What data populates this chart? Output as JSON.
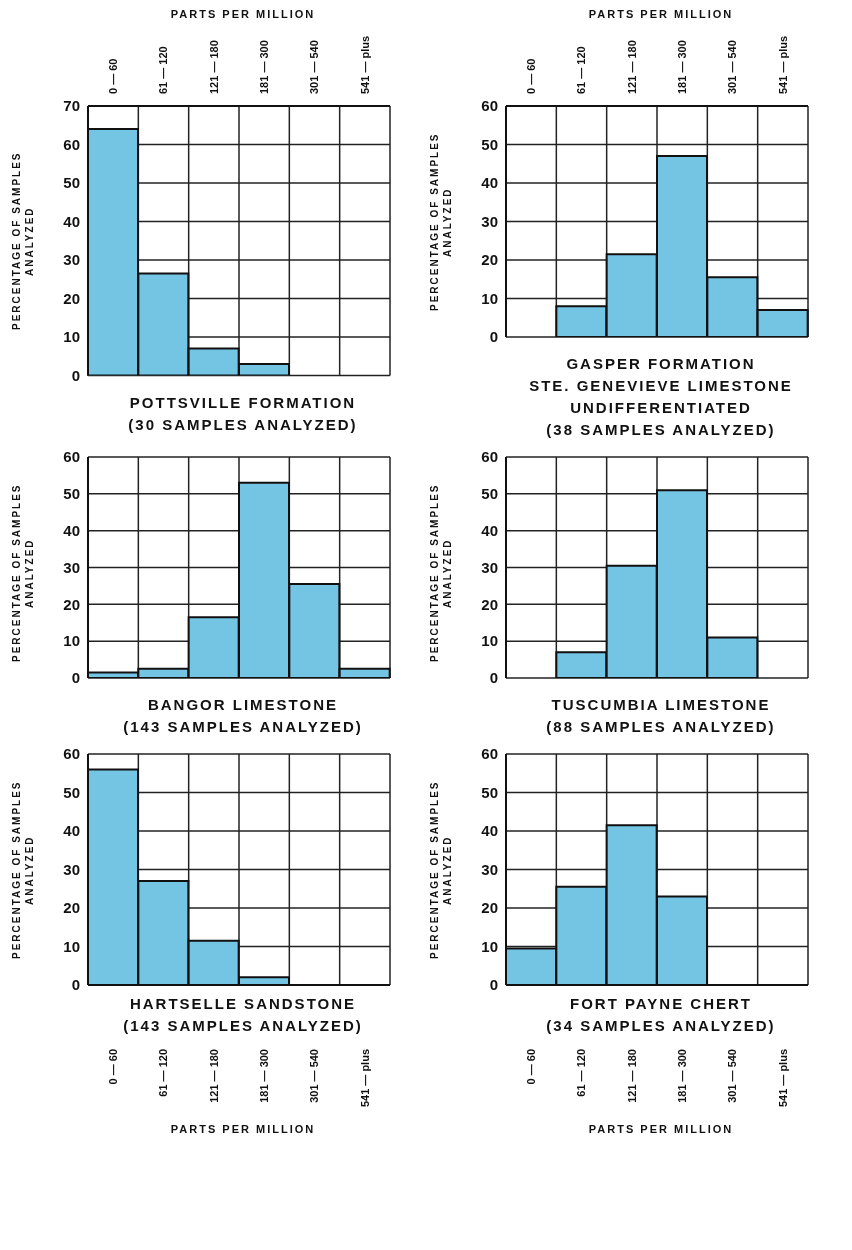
{
  "chart_data": [
    {
      "type": "bar",
      "title": "POTTSVILLE FORMATION",
      "annotations": [
        "(30 SAMPLES ANALYZED)"
      ],
      "x2label": "PARTS PER MILLION",
      "ylabel": "PERCENTAGE OF SAMPLES ANALYZED",
      "categories": [
        "0 — 60",
        "61 — 120",
        "121 — 180",
        "181 — 300",
        "301 — 540",
        "541 — plus"
      ],
      "values": [
        64,
        26.5,
        7,
        3,
        0,
        0
      ],
      "color": "#74c4e4",
      "ylim": [
        0,
        70
      ],
      "yticks": [
        0,
        10,
        20,
        30,
        40,
        50,
        60,
        70
      ],
      "grid": true
    },
    {
      "type": "bar",
      "title": "GASPER FORMATION",
      "subtitle": "STE. GENEVIEVE LIMESTONE UNDIFFERENTIATED",
      "annotations": [
        "(38 SAMPLES ANALYZED)"
      ],
      "x2label": "PARTS PER MILLION",
      "ylabel": "PERCENTAGE OF SAMPLES ANALYZED",
      "categories": [
        "0 — 60",
        "61 — 120",
        "121 — 180",
        "181 — 300",
        "301 — 540",
        "541 — plus"
      ],
      "values": [
        0,
        8,
        21.5,
        47,
        15.5,
        7
      ],
      "color": "#74c4e4",
      "ylim": [
        0,
        60
      ],
      "yticks": [
        0,
        10,
        20,
        30,
        40,
        50,
        60
      ],
      "grid": true
    },
    {
      "type": "bar",
      "title": "BANGOR LIMESTONE",
      "annotations": [
        "(143 SAMPLES ANALYZED)"
      ],
      "ylabel": "PERCENTAGE OF SAMPLES ANALYZED",
      "categories": [
        null,
        null,
        null,
        null,
        null,
        null
      ],
      "values": [
        1.5,
        2.5,
        16.5,
        53,
        25.5,
        2.5
      ],
      "color": "#74c4e4",
      "ylim": [
        0,
        60
      ],
      "yticks": [
        0,
        10,
        20,
        30,
        40,
        50,
        60
      ],
      "grid": true,
      "tick_labels": "y"
    },
    {
      "type": "bar",
      "title": "TUSCUMBIA LIMESTONE",
      "annotations": [
        "(88 SAMPLES ANALYZED)"
      ],
      "ylabel": "PERCENTAGE OF SAMPLES ANALYZED",
      "categories": [
        null,
        null,
        null,
        null,
        null,
        null
      ],
      "values": [
        0,
        7,
        30.5,
        51,
        11,
        0
      ],
      "color": "#74c4e4",
      "ylim": [
        0,
        60
      ],
      "yticks": [
        0,
        10,
        20,
        30,
        40,
        50,
        60
      ],
      "grid": true,
      "tick_labels": "y"
    },
    {
      "type": "bar",
      "title": "HARTSELLE SANDSTONE",
      "annotations": [
        "(143 SAMPLES ANALYZED)"
      ],
      "xlabel": "PARTS PER MILLION",
      "ylabel": "PERCENTAGE OF SAMPLES ANALYZED",
      "categories": [
        "0 — 60",
        "61 — 120",
        "121 — 180",
        "181 — 300",
        "301 — 540",
        "541 — plus"
      ],
      "values": [
        56,
        27,
        11.5,
        2,
        0,
        0
      ],
      "color": "#74c4e4",
      "ylim": [
        0,
        60
      ],
      "yticks": [
        0,
        10,
        20,
        30,
        40,
        50,
        60
      ],
      "grid": true
    },
    {
      "type": "bar",
      "title": "FORT PAYNE CHERT",
      "annotations": [
        "(34 SAMPLES ANALYZED)"
      ],
      "xlabel": "PARTS PER MILLION",
      "ylabel": "PERCENTAGE OF SAMPLES ANALYZED",
      "categories": [
        "0 — 60",
        "61 — 120",
        "121 — 180",
        "181 — 300",
        "301 — 540",
        "541 — plus"
      ],
      "values": [
        9.5,
        25.5,
        41.5,
        23,
        0,
        0
      ],
      "color": "#74c4e4",
      "ylim": [
        0,
        60
      ],
      "yticks": [
        0,
        10,
        20,
        30,
        40,
        50,
        60
      ],
      "grid": true
    }
  ]
}
